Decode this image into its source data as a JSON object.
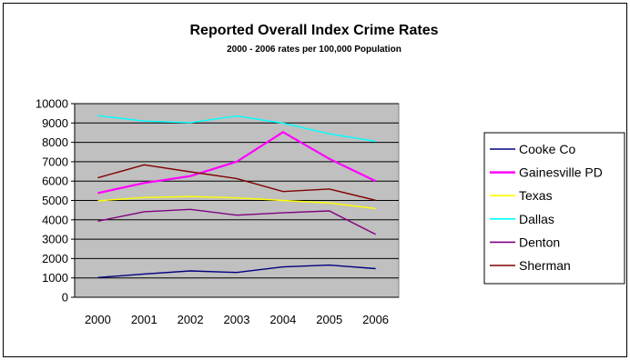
{
  "chart_data": {
    "type": "line",
    "title": "Reported Overall Index Crime Rates",
    "subtitle": "2000 - 2006 rates per 100,000 Population",
    "x": [
      "2000",
      "2001",
      "2002",
      "2003",
      "2004",
      "2005",
      "2006"
    ],
    "y_ticks": [
      "0",
      "1000",
      "2000",
      "3000",
      "4000",
      "5000",
      "6000",
      "7000",
      "8000",
      "9000",
      "10000"
    ],
    "ylim": [
      0,
      10000
    ],
    "grid": true,
    "plot_background": "#c0c0c0",
    "legend_position": "right",
    "series": [
      {
        "name": "Cooke Co",
        "color": "#000080",
        "values": [
          1020,
          1200,
          1360,
          1280,
          1570,
          1660,
          1480
        ]
      },
      {
        "name": "Gainesville PD",
        "color": "#ff00ff",
        "values": [
          5380,
          5900,
          6260,
          7000,
          8530,
          7150,
          6000
        ]
      },
      {
        "name": "Texas",
        "color": "#ffff00",
        "values": [
          4980,
          5150,
          5200,
          5130,
          5000,
          4870,
          4580
        ]
      },
      {
        "name": "Dallas",
        "color": "#00ffff",
        "values": [
          9380,
          9100,
          9020,
          9360,
          8990,
          8440,
          8050
        ]
      },
      {
        "name": "Denton",
        "color": "#800080",
        "values": [
          3930,
          4420,
          4540,
          4240,
          4360,
          4460,
          3250
        ]
      },
      {
        "name": "Sherman",
        "color": "#800000",
        "values": [
          6170,
          6840,
          6480,
          6130,
          5460,
          5590,
          5010
        ]
      }
    ]
  }
}
